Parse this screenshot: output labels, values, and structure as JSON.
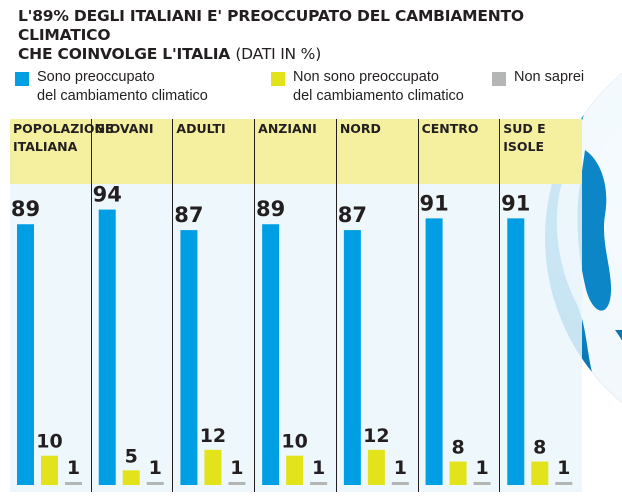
{
  "title": {
    "line1": "L'89% DEGLI ITALIANI E' PREOCCUPATO DEL CAMBIAMENTO CLIMATICO",
    "line2": "CHE COINVOLGE L'ITALIA",
    "unit": "(DATI IN %)"
  },
  "legend": [
    {
      "line1": "Sono preoccupato",
      "line2": "del cambiamento climatico",
      "color": "#009fe3"
    },
    {
      "line1": "Non sono preoccupato",
      "line2": "del cambiamento climatico",
      "color": "#e2e31a"
    },
    {
      "line1": "Non saprei",
      "line2": "",
      "color": "#b4b5b5"
    }
  ],
  "colors": {
    "header_band": "#f4f0a0",
    "panel_bg": "#eaf6fc",
    "globe_ocean": "#0c86c6",
    "globe_land": "#ffffff",
    "separator": "#231f20"
  },
  "chart_data": {
    "type": "bar",
    "categories": [
      [
        "POPOLAZIONE",
        "ITALIANA"
      ],
      [
        "GIOVANI"
      ],
      [
        "ADULTI"
      ],
      [
        "ANZIANI"
      ],
      [
        "NORD"
      ],
      [
        "CENTRO"
      ],
      [
        "SUD E",
        "ISOLE"
      ]
    ],
    "series": [
      {
        "name": "Sono preoccupato del cambiamento climatico",
        "color": "#009fe3",
        "values": [
          89,
          94,
          87,
          89,
          87,
          91,
          91
        ]
      },
      {
        "name": "Non sono preoccupato del cambiamento climatico",
        "color": "#e2e31a",
        "values": [
          10,
          5,
          12,
          10,
          12,
          8,
          8
        ]
      },
      {
        "name": "Non saprei",
        "color": "#b4b5b5",
        "values": [
          1,
          1,
          1,
          1,
          1,
          1,
          1
        ]
      }
    ],
    "ylim": [
      0,
      100
    ],
    "grid": false,
    "legend_position": "top"
  }
}
